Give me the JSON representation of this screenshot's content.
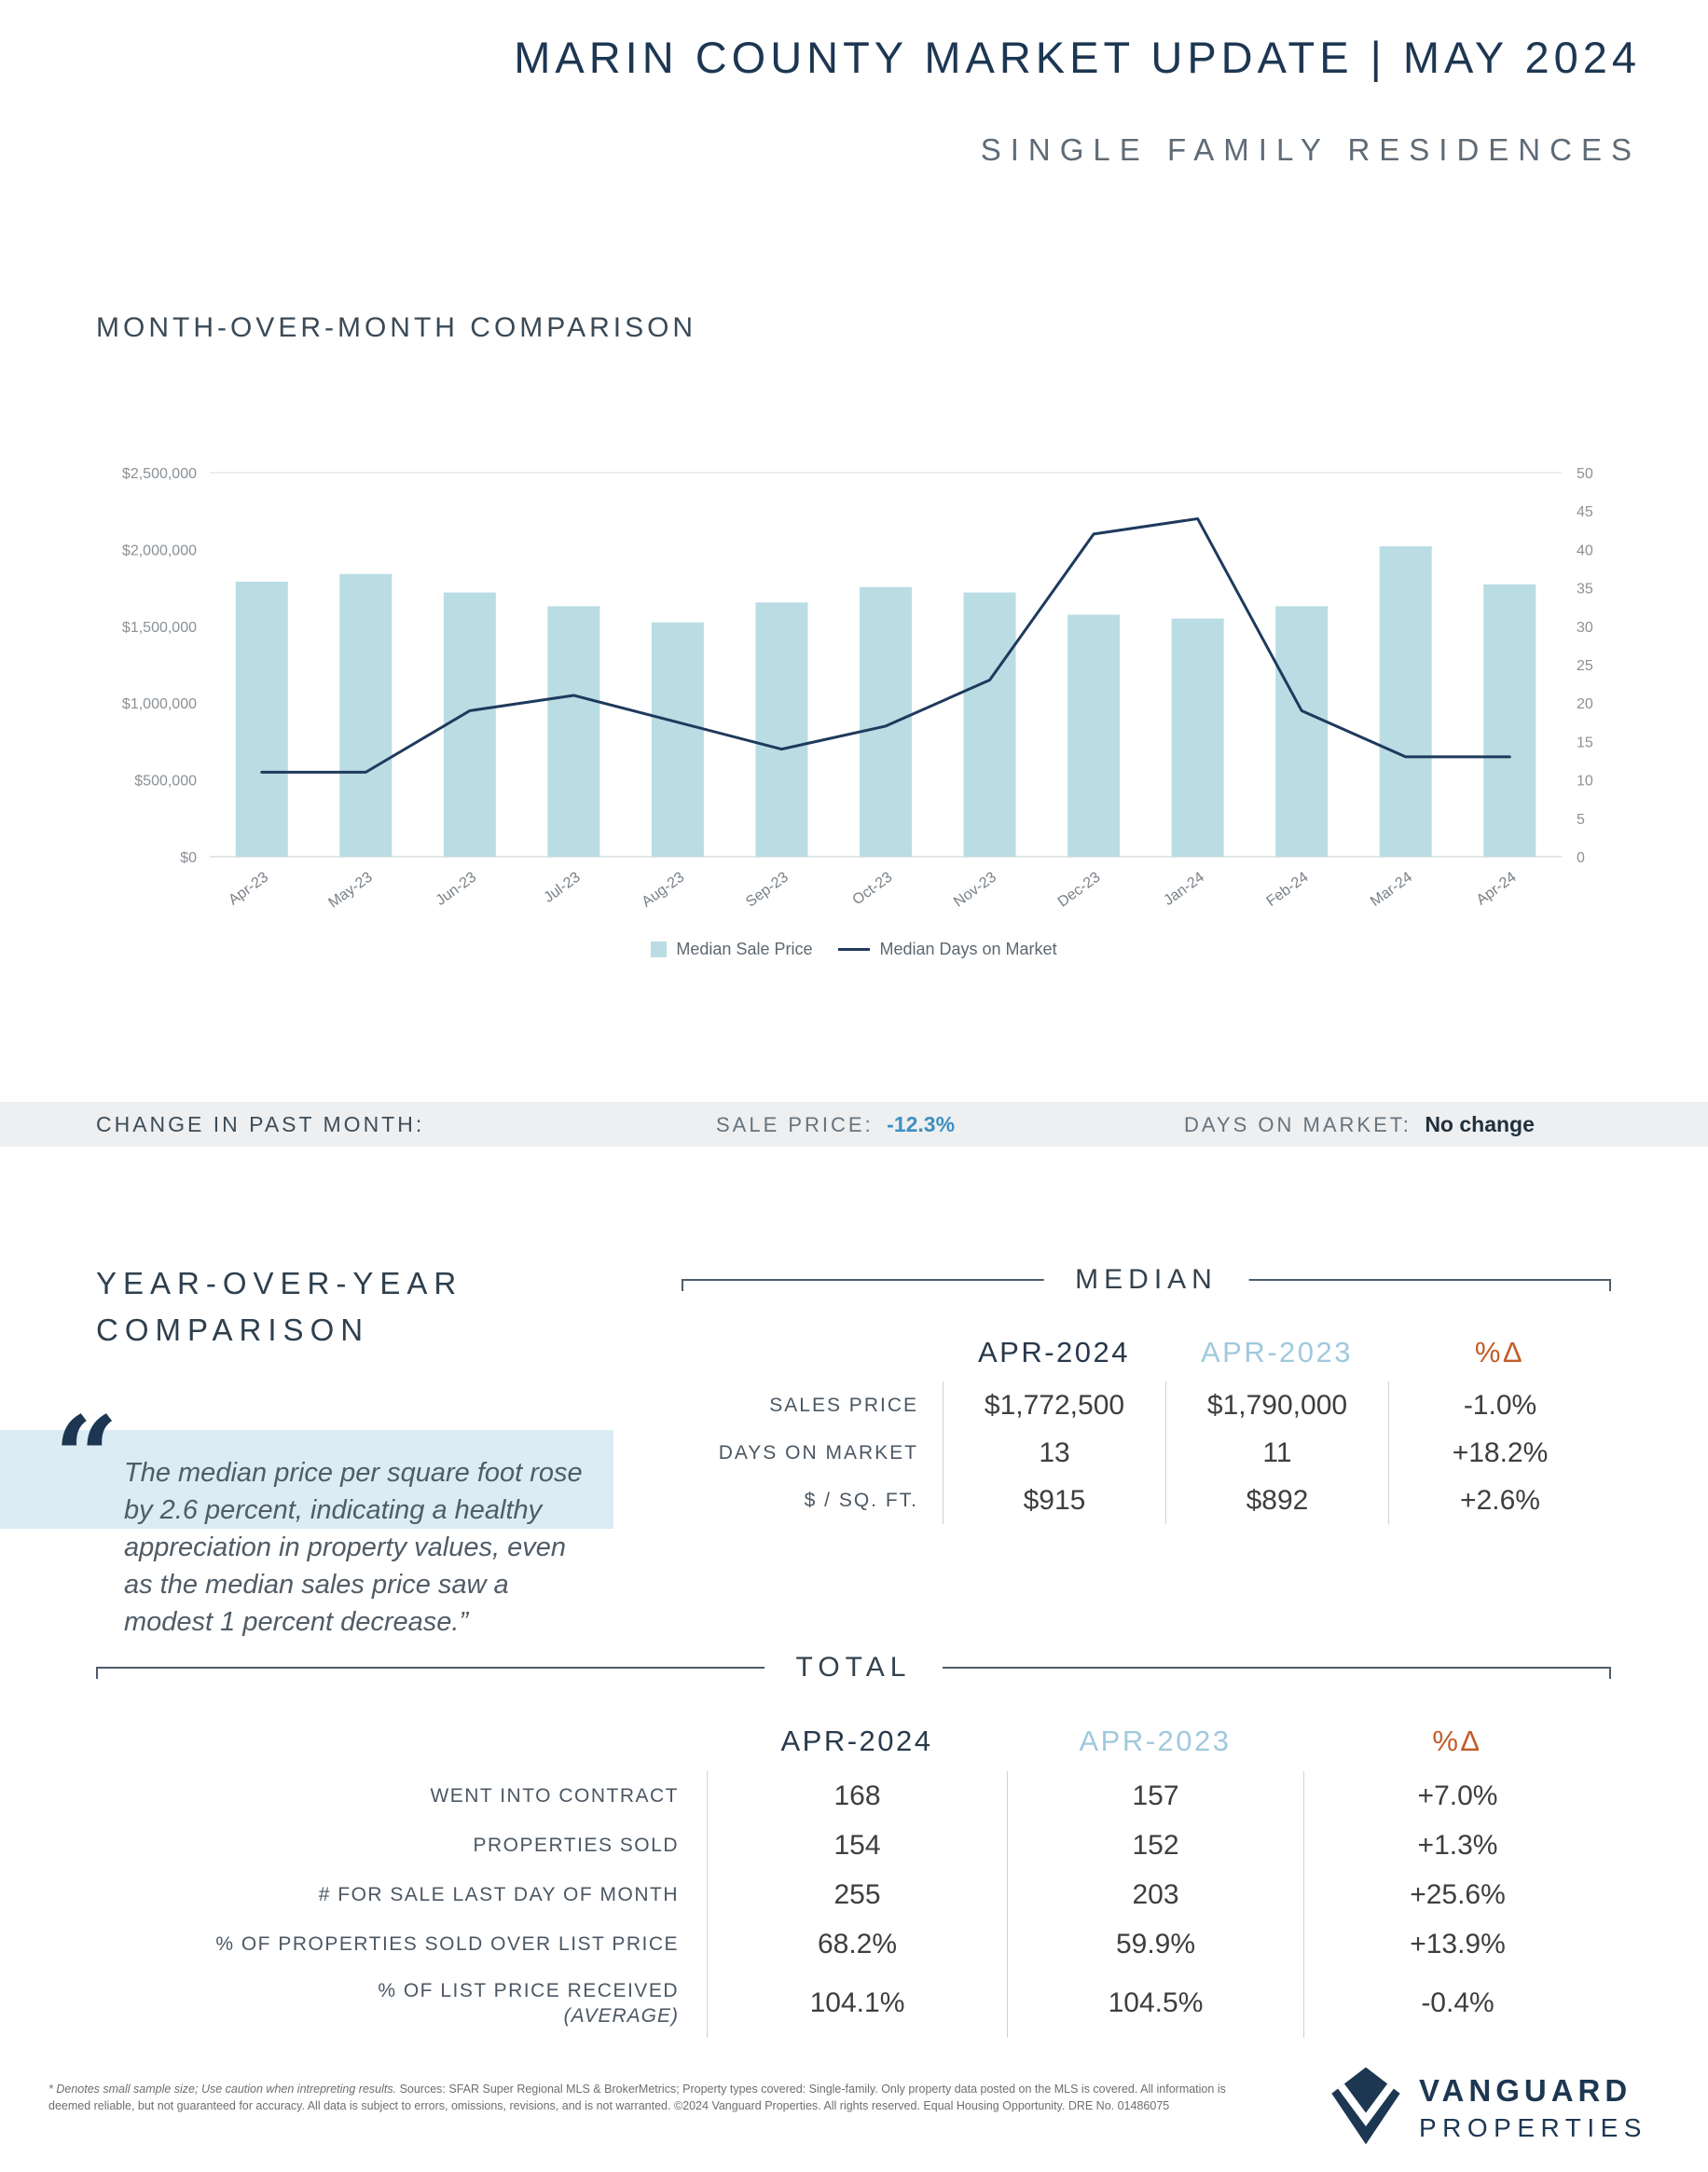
{
  "header": {
    "title": "MARIN COUNTY MARKET UPDATE | MAY 2024",
    "subtitle": "SINGLE FAMILY RESIDENCES"
  },
  "mom": {
    "section_title": "MONTH-OVER-MONTH COMPARISON"
  },
  "chart_data": {
    "type": "bar+line",
    "categories": [
      "Apr-23",
      "May-23",
      "Jun-23",
      "Jul-23",
      "Aug-23",
      "Sep-23",
      "Oct-23",
      "Nov-23",
      "Dec-23",
      "Jan-24",
      "Feb-24",
      "Mar-24",
      "Apr-24"
    ],
    "series": [
      {
        "name": "Median Sale Price",
        "type": "bar",
        "axis": "left",
        "color": "#b9dde3",
        "values": [
          1790000,
          1840000,
          1720000,
          1630000,
          1525000,
          1655000,
          1755000,
          1720000,
          1575000,
          1550000,
          1630000,
          2020000,
          1772500
        ]
      },
      {
        "name": "Median Days on Market",
        "type": "line",
        "axis": "right",
        "color": "#1e3a5c",
        "values": [
          11,
          11,
          19,
          21,
          17.5,
          14,
          17,
          23,
          42,
          44,
          19,
          13,
          13
        ]
      }
    ],
    "left_axis": {
      "min": 0,
      "max": 2500000,
      "ticks": [
        "$0",
        "$500,000",
        "$1,000,000",
        "$1,500,000",
        "$2,000,000",
        "$2,500,000"
      ]
    },
    "right_axis": {
      "min": 0,
      "max": 50,
      "step": 5
    },
    "legend_position": "bottom",
    "grid": "minimal"
  },
  "change_band": {
    "label": "CHANGE IN PAST MONTH:",
    "sale_price_label": "SALE PRICE:",
    "sale_price_value": "-12.3%",
    "dom_label": "DAYS ON MARKET:",
    "dom_value": "No change"
  },
  "yoy": {
    "title_line1": "YEAR-OVER-YEAR",
    "title_line2": "COMPARISON",
    "quote_mark": "“",
    "quote": "The median price per square foot rose by 2.6 percent, indicating a healthy appreciation in property values, even as the median sales price saw a modest 1 percent decrease.”"
  },
  "median_table": {
    "title": "MEDIAN",
    "col1": "APR-2024",
    "col2": "APR-2023",
    "col3": "%Δ",
    "rows": [
      {
        "label": "SALES PRICE",
        "v1": "$1,772,500",
        "v2": "$1,790,000",
        "v3": "-1.0%"
      },
      {
        "label": "DAYS ON MARKET",
        "v1": "13",
        "v2": "11",
        "v3": "+18.2%"
      },
      {
        "label": "$ / SQ. FT.",
        "v1": "$915",
        "v2": "$892",
        "v3": "+2.6%"
      }
    ]
  },
  "total_table": {
    "title": "TOTAL",
    "col1": "APR-2024",
    "col2": "APR-2023",
    "col3": "%Δ",
    "rows": [
      {
        "label": "WENT INTO CONTRACT",
        "v1": "168",
        "v2": "157",
        "v3": "+7.0%"
      },
      {
        "label": "PROPERTIES SOLD",
        "v1": "154",
        "v2": "152",
        "v3": "+1.3%"
      },
      {
        "label": "# FOR SALE LAST DAY OF MONTH",
        "v1": "255",
        "v2": "203",
        "v3": "+25.6%"
      },
      {
        "label": "% OF PROPERTIES SOLD OVER LIST PRICE",
        "v1": "68.2%",
        "v2": "59.9%",
        "v3": "+13.9%"
      },
      {
        "label": "% OF LIST PRICE RECEIVED",
        "label_sub": "(AVERAGE)",
        "v1": "104.1%",
        "v2": "104.5%",
        "v3": "-0.4%"
      }
    ]
  },
  "footer": {
    "disclaimer_italic": "* Denotes small sample size; Use caution when intrepreting results.",
    "disclaimer_rest": " Sources: SFAR Super Regional MLS & BrokerMetrics; Property types covered: Single-family. Only property data posted on the MLS is covered. All information is deemed reliable, but not guaranteed for accuracy. All data is subject to errors, omissions, revisions, and is not warranted. ©2024 Vanguard Properties. All rights reserved. Equal Housing Opportunity. DRE No. 01486075",
    "logo_line1": "VANGUARD",
    "logo_line2": "PROPERTIES"
  },
  "colors": {
    "navy": "#1d3752",
    "bar_blue": "#b9dde3",
    "light_blue_text": "#a0c9dd",
    "orange": "#c25c28",
    "value_blue": "#3e8fc1",
    "band_bg": "#edeff0",
    "highlight_bg": "#dcecf4"
  }
}
